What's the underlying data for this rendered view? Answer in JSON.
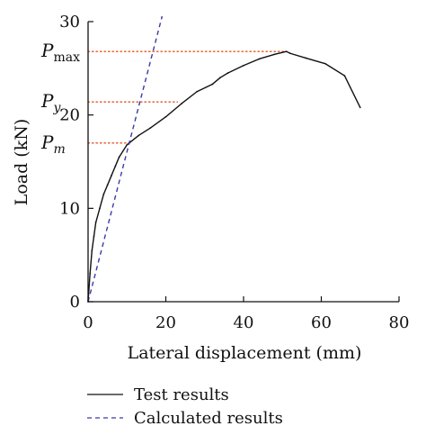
{
  "chart_data": {
    "type": "line",
    "title": "",
    "xlabel": "Lateral displacement (mm)",
    "ylabel": "Load (kN)",
    "xlim": [
      0,
      80
    ],
    "ylim": [
      0,
      30
    ],
    "x_ticks": [
      0,
      20,
      40,
      60,
      80
    ],
    "y_ticks": [
      0,
      10,
      20,
      30
    ],
    "x_tick_labels": [
      "0",
      "20",
      "40",
      "60",
      "80"
    ],
    "y_tick_labels": [
      "0",
      "10",
      "20",
      "30"
    ],
    "grid": false,
    "legend_position": "bottom",
    "series": [
      {
        "name": "Test results",
        "style": "solid",
        "color": "#111111",
        "x": [
          0,
          0.5,
          1,
          1.5,
          2,
          3,
          4,
          5,
          6,
          7,
          8,
          10,
          13,
          16,
          20,
          24,
          28,
          32,
          34,
          36,
          40,
          44,
          48,
          51,
          52,
          56,
          61,
          66,
          70
        ],
        "y": [
          0,
          3,
          5.5,
          7,
          8.5,
          10,
          11.5,
          12.5,
          13.5,
          14.5,
          15.5,
          16.8,
          17.8,
          18.6,
          19.8,
          21.2,
          22.5,
          23.3,
          24,
          24.5,
          25.3,
          26,
          26.5,
          26.8,
          26.6,
          26.1,
          25.5,
          24.2,
          20.8
        ]
      },
      {
        "name": "Calculated results",
        "style": "dashed",
        "color": "#3a3aa8",
        "x": [
          0,
          19
        ],
        "y": [
          0,
          30.5
        ]
      }
    ],
    "annotations": [
      {
        "main": "P",
        "sub": "max",
        "value": 26.8,
        "x_end": 51
      },
      {
        "main": "P",
        "sub": "y",
        "value": 21.4,
        "x_end": 23
      },
      {
        "main": "P",
        "sub": "m",
        "value": 17.0,
        "x_end": 11
      }
    ],
    "reference_line_color": "#e05a2a"
  }
}
